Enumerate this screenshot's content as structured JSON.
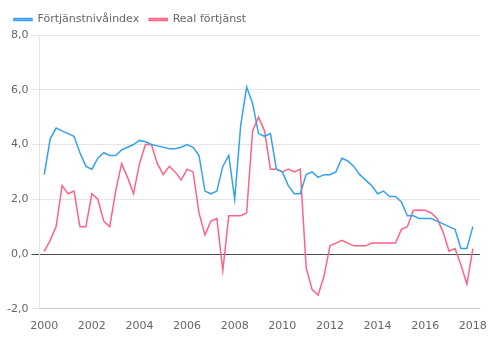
{
  "chart_data": {
    "type": "line",
    "x": [
      2000.0,
      2000.25,
      2000.5,
      2000.75,
      2001.0,
      2001.25,
      2001.5,
      2001.75,
      2002.0,
      2002.25,
      2002.5,
      2002.75,
      2003.0,
      2003.25,
      2003.5,
      2003.75,
      2004.0,
      2004.25,
      2004.5,
      2004.75,
      2005.0,
      2005.25,
      2005.5,
      2005.75,
      2006.0,
      2006.25,
      2006.5,
      2006.75,
      2007.0,
      2007.25,
      2007.5,
      2007.75,
      2008.0,
      2008.25,
      2008.5,
      2008.75,
      2009.0,
      2009.25,
      2009.5,
      2009.75,
      2010.0,
      2010.25,
      2010.5,
      2010.75,
      2011.0,
      2011.25,
      2011.5,
      2011.75,
      2012.0,
      2012.25,
      2012.5,
      2012.75,
      2013.0,
      2013.25,
      2013.5,
      2013.75,
      2014.0,
      2014.25,
      2014.5,
      2014.75,
      2015.0,
      2015.25,
      2015.5,
      2015.75,
      2016.0,
      2016.25,
      2016.5,
      2016.75,
      2017.0,
      2017.25,
      2017.5,
      2017.75,
      2018.0
    ],
    "series": [
      {
        "name": "Förtjänstnivåindex",
        "values": [
          2.9,
          4.2,
          4.6,
          4.5,
          4.4,
          4.3,
          3.7,
          3.2,
          3.1,
          3.5,
          3.7,
          3.6,
          3.6,
          3.8,
          3.9,
          4.0,
          4.15,
          4.1,
          4.0,
          3.95,
          3.9,
          3.85,
          3.85,
          3.9,
          4.0,
          3.9,
          3.6,
          2.3,
          2.2,
          2.3,
          3.2,
          3.6,
          2.0,
          4.7,
          6.1,
          5.5,
          4.4,
          4.3,
          4.4,
          3.1,
          3.0,
          2.5,
          2.2,
          2.2,
          2.9,
          3.0,
          2.8,
          2.9,
          2.9,
          3.0,
          3.5,
          3.4,
          3.2,
          2.9,
          2.7,
          2.5,
          2.2,
          2.3,
          2.1,
          2.1,
          1.9,
          1.4,
          1.4,
          1.3,
          1.3,
          1.3,
          1.2,
          1.1,
          1.0,
          0.9,
          0.2,
          0.2,
          1.0
        ]
      },
      {
        "name": "Real förtjänst",
        "values": [
          0.1,
          0.5,
          1.0,
          2.5,
          2.2,
          2.3,
          1.0,
          1.0,
          2.2,
          2.0,
          1.2,
          1.0,
          2.3,
          3.3,
          2.8,
          2.2,
          3.3,
          4.0,
          4.0,
          3.3,
          2.9,
          3.2,
          3.0,
          2.7,
          3.1,
          3.0,
          1.5,
          0.7,
          1.2,
          1.3,
          -0.6,
          1.4,
          1.4,
          1.4,
          1.5,
          4.5,
          5.0,
          4.5,
          3.1,
          3.1,
          3.0,
          3.1,
          3.0,
          3.1,
          -0.5,
          -1.3,
          -1.5,
          -0.8,
          0.3,
          0.4,
          0.5,
          0.4,
          0.3,
          0.3,
          0.3,
          0.4,
          0.4,
          0.4,
          0.4,
          0.4,
          0.9,
          1.0,
          1.6,
          1.6,
          1.6,
          1.5,
          1.3,
          0.8,
          0.1,
          0.2,
          -0.4,
          -1.1,
          0.2
        ]
      }
    ],
    "xlim": [
      1999.8,
      2018.3
    ],
    "xticks": [
      2000,
      2002,
      2004,
      2006,
      2008,
      2010,
      2012,
      2014,
      2016,
      2018
    ],
    "ylim": [
      -2.0,
      8.0
    ],
    "yticks": [
      {
        "value": -2.0,
        "label": "-2,0"
      },
      {
        "value": 0.0,
        "label": "0,0"
      },
      {
        "value": 2.0,
        "label": "2,0"
      },
      {
        "value": 4.0,
        "label": "4,0"
      },
      {
        "value": 6.0,
        "label": "6,0"
      },
      {
        "value": 8.0,
        "label": "8,0"
      }
    ],
    "grid": "y",
    "legend": "upper left"
  }
}
